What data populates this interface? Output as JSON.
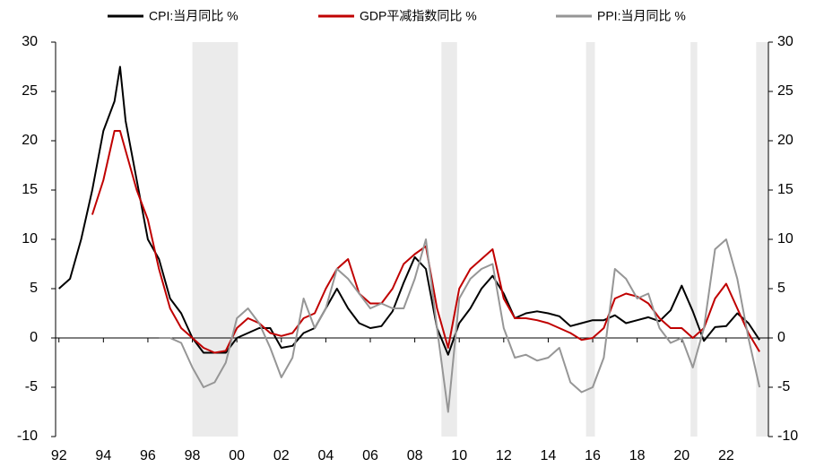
{
  "chart_data": {
    "type": "line",
    "x": [
      1992.0,
      1992.5,
      1993.0,
      1993.5,
      1994.0,
      1994.5,
      1994.75,
      1995.0,
      1995.5,
      1996.0,
      1996.5,
      1997.0,
      1997.5,
      1998.0,
      1998.5,
      1999.0,
      1999.5,
      2000.0,
      2000.5,
      2001.0,
      2001.5,
      2002.0,
      2002.5,
      2003.0,
      2003.5,
      2004.0,
      2004.5,
      2005.0,
      2005.5,
      2006.0,
      2006.5,
      2007.0,
      2007.5,
      2008.0,
      2008.5,
      2009.0,
      2009.5,
      2010.0,
      2010.5,
      2011.0,
      2011.5,
      2012.0,
      2012.5,
      2013.0,
      2013.5,
      2014.0,
      2014.5,
      2015.0,
      2015.5,
      2016.0,
      2016.5,
      2017.0,
      2017.5,
      2018.0,
      2018.5,
      2019.0,
      2019.5,
      2020.0,
      2020.5,
      2021.0,
      2021.5,
      2022.0,
      2022.5,
      2023.0,
      2023.5
    ],
    "series": [
      {
        "name": "CPI:当月同比 %",
        "color": "#000000",
        "values": [
          5,
          6,
          10,
          15,
          21,
          24,
          27.5,
          22,
          16,
          10,
          8,
          4,
          2.5,
          0,
          -1.5,
          -1.5,
          -1.5,
          0,
          0.5,
          1,
          1,
          -1,
          -0.8,
          0.5,
          1,
          3,
          5,
          3,
          1.5,
          1,
          1.2,
          2.7,
          5.6,
          8.2,
          7,
          1,
          -1.7,
          1.5,
          3,
          5,
          6.3,
          4.5,
          2,
          2.5,
          2.7,
          2.5,
          2.2,
          1.2,
          1.5,
          1.8,
          1.8,
          2.3,
          1.5,
          1.8,
          2.1,
          1.7,
          2.8,
          5.3,
          2.7,
          -0.3,
          1.1,
          1.2,
          2.5,
          1.5,
          -0.2
        ]
      },
      {
        "name": "GDP平减指数同比 %",
        "color": "#c00000",
        "values": [
          null,
          null,
          null,
          12.5,
          16,
          21,
          21,
          19,
          15,
          12,
          7,
          3,
          1,
          0,
          -1,
          -1.5,
          -1.3,
          1,
          2,
          1.5,
          0.5,
          0.2,
          0.5,
          2,
          2.5,
          5,
          7,
          8,
          4.5,
          3.5,
          3.5,
          5,
          7.5,
          8.5,
          9.3,
          3,
          -1,
          5,
          7,
          8,
          9,
          4,
          2,
          2,
          1.8,
          1.5,
          1,
          0.5,
          -0.2,
          0,
          1,
          4,
          4.5,
          4.2,
          3.5,
          2,
          1,
          1,
          0,
          1,
          4,
          5.5,
          3,
          0.5,
          -1.4
        ]
      },
      {
        "name": "PPI:当月同比 %",
        "color": "#969696",
        "values": [
          null,
          null,
          null,
          null,
          null,
          null,
          null,
          null,
          null,
          null,
          0,
          0,
          -0.5,
          -3,
          -5,
          -4.5,
          -2.5,
          2,
          3,
          1.5,
          -1,
          -4,
          -2,
          4,
          1,
          3,
          7,
          6,
          4.5,
          3,
          3.5,
          3,
          3,
          6,
          10,
          1,
          -7.5,
          4,
          6,
          7,
          7.5,
          1,
          -2,
          -1.7,
          -2.3,
          -2,
          -1,
          -4.5,
          -5.5,
          -5,
          -2,
          7,
          6,
          4,
          4.5,
          1,
          -0.5,
          0,
          -3,
          1,
          9,
          10,
          6,
          0,
          -5
        ]
      }
    ],
    "xlim": [
      1991.85,
      2023.9
    ],
    "xticks": [
      {
        "value": 1992,
        "label": "92"
      },
      {
        "value": 1994,
        "label": "94"
      },
      {
        "value": 1996,
        "label": "96"
      },
      {
        "value": 1998,
        "label": "98"
      },
      {
        "value": 2000,
        "label": "00"
      },
      {
        "value": 2002,
        "label": "02"
      },
      {
        "value": 2004,
        "label": "04"
      },
      {
        "value": 2006,
        "label": "06"
      },
      {
        "value": 2008,
        "label": "08"
      },
      {
        "value": 2010,
        "label": "10"
      },
      {
        "value": 2012,
        "label": "12"
      },
      {
        "value": 2014,
        "label": "14"
      },
      {
        "value": 2016,
        "label": "16"
      },
      {
        "value": 2018,
        "label": "18"
      },
      {
        "value": 2020,
        "label": "20"
      },
      {
        "value": 2022,
        "label": "22"
      }
    ],
    "ylim": [
      -10,
      30
    ],
    "yticks": [
      -10,
      -5,
      0,
      5,
      10,
      15,
      20,
      25,
      30
    ],
    "y2lim": [
      -10,
      30
    ],
    "y2ticks": [
      -10,
      -5,
      0,
      5,
      10,
      15,
      20,
      25,
      30
    ],
    "shaded_periods": [
      [
        1998.0,
        2000.05
      ],
      [
        2009.2,
        2009.9
      ],
      [
        2015.7,
        2016.1
      ],
      [
        2020.4,
        2020.7
      ],
      [
        2023.35,
        2023.9
      ]
    ],
    "shade_color": "#ebebeb"
  }
}
